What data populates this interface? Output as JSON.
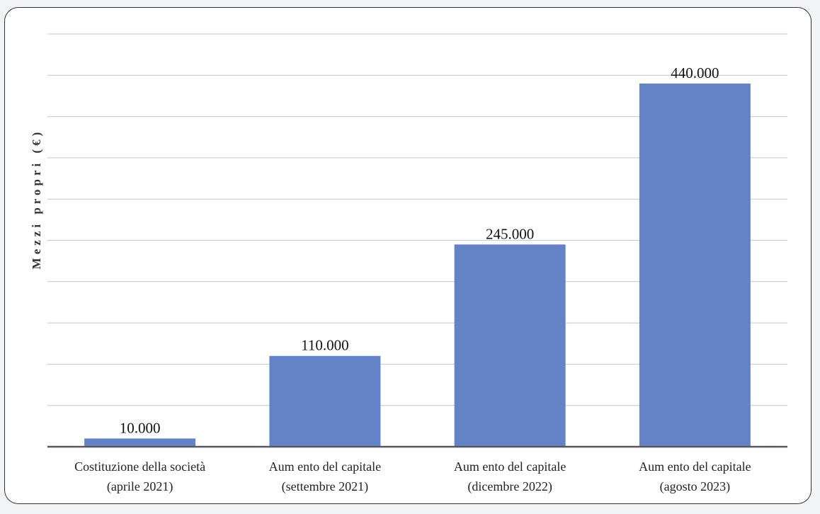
{
  "chart_data": {
    "type": "bar",
    "categories": [
      [
        "Costituzione della società",
        "(aprile 2021)"
      ],
      [
        "Aum ento del capitale",
        "(settembre 2021)"
      ],
      [
        "Aum ento del capitale",
        "(dicembre 2022)"
      ],
      [
        "Aum ento del capitale",
        "(agosto 2023)"
      ]
    ],
    "values": [
      10000,
      110000,
      245000,
      440000
    ],
    "data_labels": [
      "10.000",
      "110.000",
      "245.000",
      "440.000"
    ],
    "title": "",
    "xlabel": "",
    "ylabel": "Mezzi propri (€)",
    "ylim": [
      0,
      500000
    ],
    "y_tick_step": 50000,
    "y_tick_labels_shown": false,
    "grid": true,
    "legend": "none",
    "colors": {
      "bar": "#6483c7",
      "grid": "#c4c7cc",
      "axis": "#55585e"
    }
  }
}
